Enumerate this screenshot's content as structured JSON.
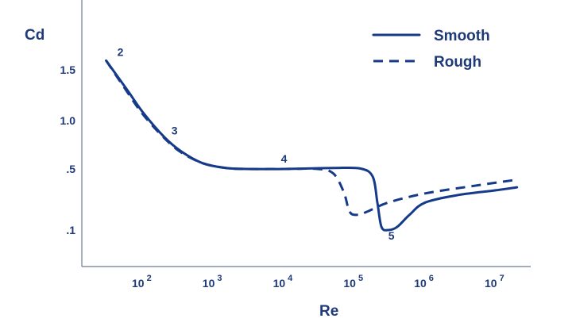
{
  "chart_data": {
    "type": "line",
    "xlabel": "Re",
    "ylabel": "Cd",
    "x_scale": "log",
    "legend_position": "top-right",
    "grid": false,
    "colors": {
      "series": "#163a8a",
      "text": "#1f3a78",
      "axis": "#6b7896"
    },
    "x_ticks": [
      {
        "base": "10",
        "exp": "2",
        "value": 100
      },
      {
        "base": "10",
        "exp": "3",
        "value": 1000
      },
      {
        "base": "10",
        "exp": "4",
        "value": 10000
      },
      {
        "base": "10",
        "exp": "5",
        "value": 100000
      },
      {
        "base": "10",
        "exp": "6",
        "value": 1000000
      },
      {
        "base": "10",
        "exp": "7",
        "value": 10000000
      }
    ],
    "y_ticks": [
      {
        "label": "1.5",
        "value": 1.5
      },
      {
        "label": "1.0",
        "value": 1.0
      },
      {
        "label": ".5",
        "value": 0.5
      },
      {
        "label": ".1",
        "value": 0.1
      }
    ],
    "series": [
      {
        "name": "Smooth",
        "style": "solid",
        "points": [
          [
            30,
            1.6
          ],
          [
            60,
            1.3
          ],
          [
            100,
            1.08
          ],
          [
            200,
            0.83
          ],
          [
            350,
            0.68
          ],
          [
            700,
            0.56
          ],
          [
            1500,
            0.51
          ],
          [
            3000,
            0.5
          ],
          [
            10000,
            0.5
          ],
          [
            50000,
            0.51
          ],
          [
            120000,
            0.505
          ],
          [
            180000,
            0.45
          ],
          [
            210000,
            0.28
          ],
          [
            240000,
            0.12
          ],
          [
            300000,
            0.1
          ],
          [
            400000,
            0.12
          ],
          [
            600000,
            0.2
          ],
          [
            1000000,
            0.28
          ],
          [
            3000000,
            0.33
          ],
          [
            10000000,
            0.36
          ],
          [
            20000000,
            0.38
          ]
        ]
      },
      {
        "name": "Rough",
        "style": "dashed",
        "points": [
          [
            30,
            1.6
          ],
          [
            60,
            1.28
          ],
          [
            100,
            1.06
          ],
          [
            200,
            0.82
          ],
          [
            350,
            0.67
          ],
          [
            700,
            0.56
          ],
          [
            1500,
            0.51
          ],
          [
            3000,
            0.5
          ],
          [
            10000,
            0.5
          ],
          [
            30000,
            0.5
          ],
          [
            50000,
            0.47
          ],
          [
            70000,
            0.35
          ],
          [
            85000,
            0.22
          ],
          [
            110000,
            0.2
          ],
          [
            150000,
            0.22
          ],
          [
            300000,
            0.28
          ],
          [
            1000000,
            0.34
          ],
          [
            5000000,
            0.39
          ],
          [
            20000000,
            0.43
          ]
        ]
      }
    ],
    "annotations": [
      {
        "label": "2",
        "x": 30,
        "y": 1.6
      },
      {
        "label": "3",
        "x": 200,
        "y": 0.83
      },
      {
        "label": "4",
        "x": 10000,
        "y": 0.5
      },
      {
        "label": "5",
        "x": 300000,
        "y": 0.1
      }
    ]
  }
}
